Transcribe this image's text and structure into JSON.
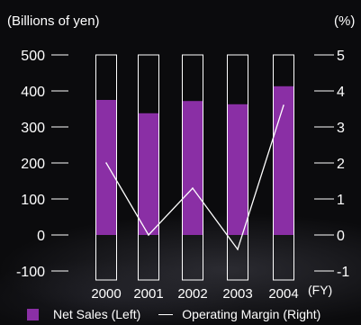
{
  "chart_data": {
    "type": "bar",
    "categories": [
      "2000",
      "2001",
      "2002",
      "2003",
      "2004"
    ],
    "x_unit": "(FY)",
    "left_axis": {
      "unit": "(Billions of yen)",
      "ticks": [
        -100,
        0,
        100,
        200,
        300,
        400,
        500
      ],
      "range": [
        -100,
        500
      ]
    },
    "right_axis": {
      "unit": "(%)",
      "ticks": [
        -1,
        0,
        1,
        2,
        3,
        4,
        5
      ],
      "range": [
        -1,
        5
      ]
    },
    "series": [
      {
        "name": "Net Sales (Left)",
        "type": "bar",
        "axis": "left",
        "color": "#8a2fa5",
        "values": [
          375,
          338,
          372,
          363,
          413
        ]
      },
      {
        "name": "Operating Margin (Right)",
        "type": "line",
        "axis": "right",
        "color": "#ffffff",
        "values": [
          2.0,
          0.0,
          1.3,
          -0.4,
          3.6
        ]
      }
    ],
    "legend_position": "bottom",
    "grid": false
  },
  "labels": {
    "left_unit": "(Billions of yen)",
    "right_unit": "(%)",
    "fy": "(FY)",
    "legend_bar": "Net Sales (Left)",
    "legend_line": "Operating Margin (Right)"
  }
}
